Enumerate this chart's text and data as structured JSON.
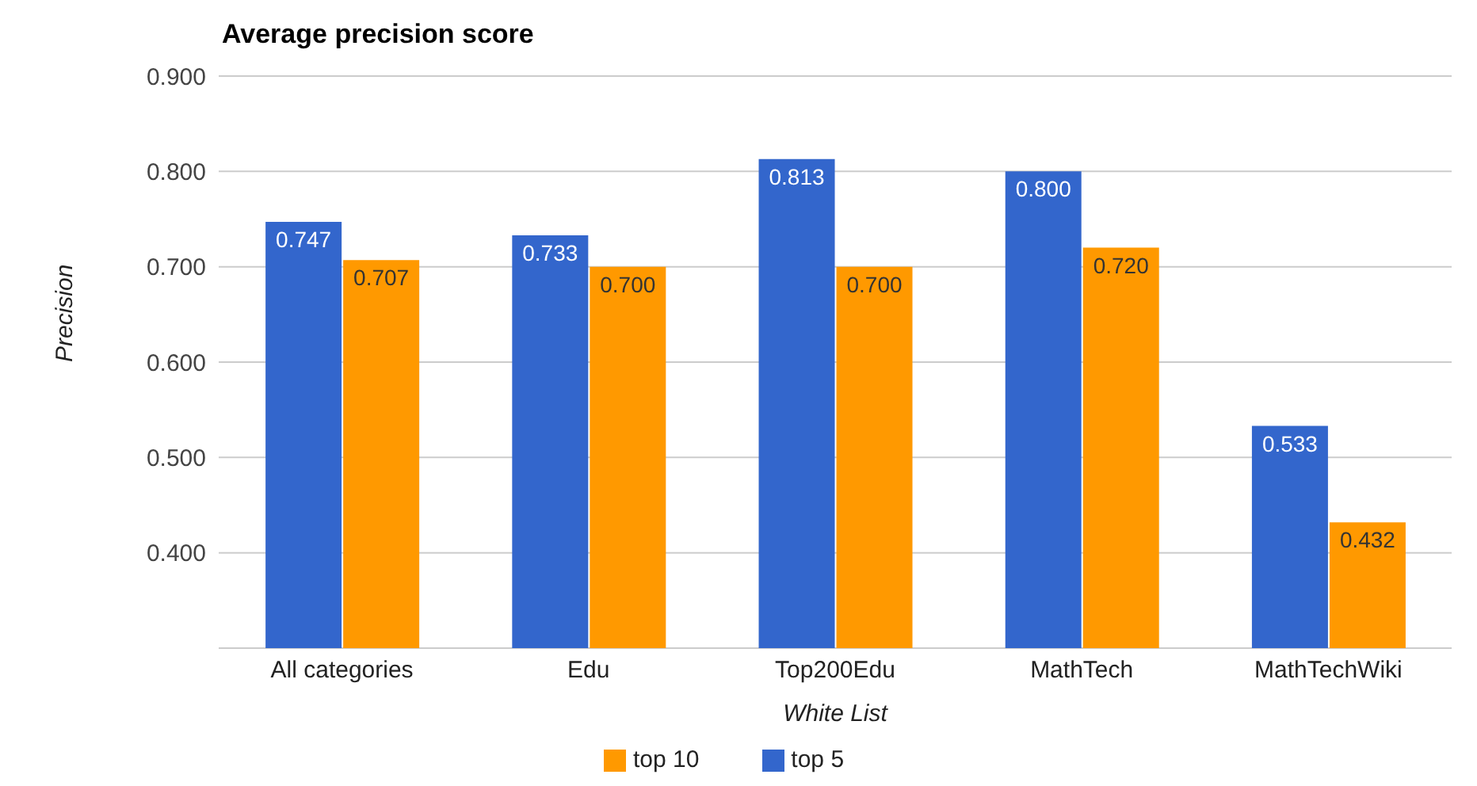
{
  "chart_data": {
    "type": "bar",
    "title": "Average precision score",
    "xlabel": "White List",
    "ylabel": "Precision",
    "categories": [
      "All categories",
      "Edu",
      "Top200Edu",
      "MathTech",
      "MathTechWiki"
    ],
    "series": [
      {
        "name": "top 5",
        "color": "#3366cc",
        "values": [
          0.747,
          0.733,
          0.813,
          0.8,
          0.533
        ],
        "value_labels": [
          "0.747",
          "0.733",
          "0.813",
          "0.800",
          "0.533"
        ]
      },
      {
        "name": "top 10",
        "color": "#ff9900",
        "values": [
          0.707,
          0.7,
          0.7,
          0.72,
          0.432
        ],
        "value_labels": [
          "0.707",
          "0.700",
          "0.700",
          "0.720",
          "0.432"
        ]
      }
    ],
    "ylim": [
      0.3,
      0.9
    ],
    "yticks": [
      {
        "value": 0.3,
        "label": null
      },
      {
        "value": 0.4,
        "label": "0.400"
      },
      {
        "value": 0.5,
        "label": "0.500"
      },
      {
        "value": 0.6,
        "label": "0.600"
      },
      {
        "value": 0.7,
        "label": "0.700"
      },
      {
        "value": 0.8,
        "label": "0.800"
      },
      {
        "value": 0.9,
        "label": "0.900"
      }
    ],
    "grid": "y",
    "legend": "bottom"
  }
}
